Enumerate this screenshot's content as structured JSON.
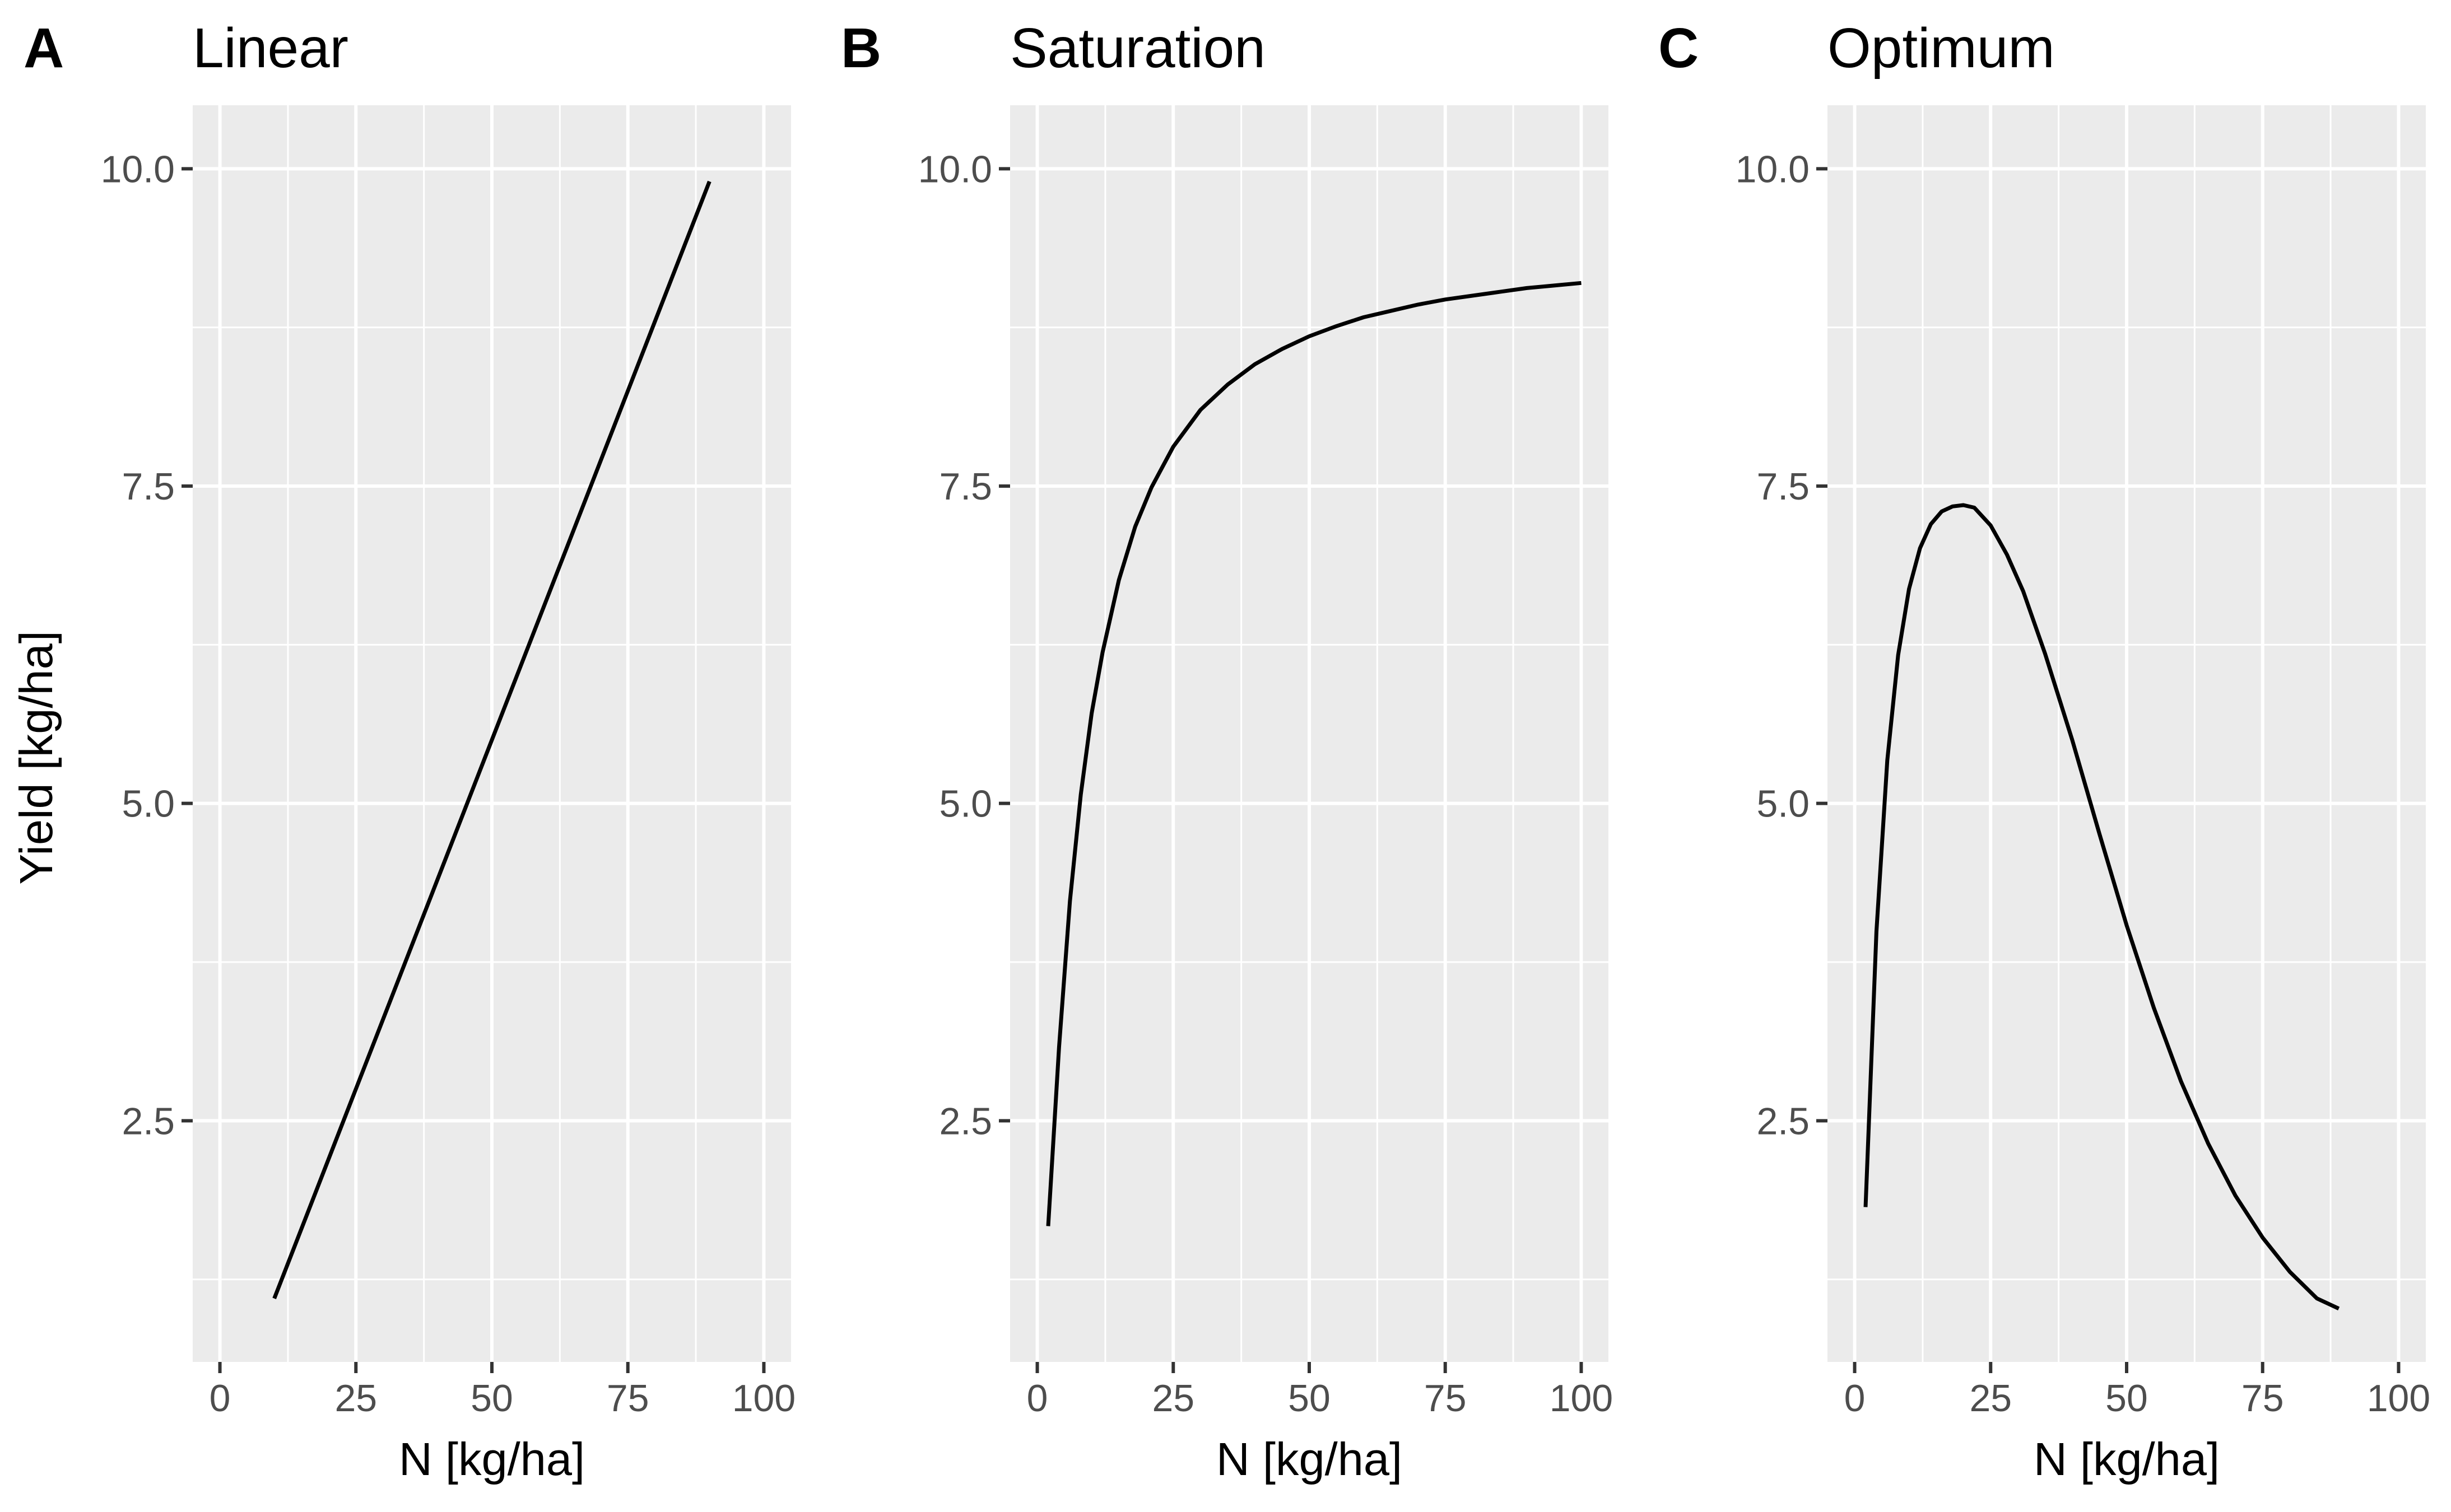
{
  "figure": {
    "ylabel": "Yield [kg/ha]"
  },
  "chart_data": [
    {
      "tag": "A",
      "title": "Linear",
      "type": "line",
      "xlabel": "N [kg/ha]",
      "ylabel": "Yield [kg/ha]",
      "xlim": [
        -5,
        105
      ],
      "ylim": [
        0.6,
        10.5
      ],
      "xticks": [
        0,
        25,
        50,
        75,
        100
      ],
      "xtick_labels": [
        "0",
        "25",
        "50",
        "75",
        "100"
      ],
      "yticks": [
        2.5,
        5.0,
        7.5,
        10.0
      ],
      "ytick_labels": [
        "2.5",
        "5.0",
        "7.5",
        "10.0"
      ],
      "grid": true,
      "series": [
        {
          "x": [
            10,
            20,
            30,
            40,
            50,
            60,
            70,
            80,
            90
          ],
          "y": [
            1.1,
            2.2,
            3.3,
            4.4,
            5.5,
            6.6,
            7.7,
            8.8,
            9.9
          ]
        }
      ]
    },
    {
      "tag": "B",
      "title": "Saturation",
      "type": "line",
      "xlabel": "N [kg/ha]",
      "xlim": [
        -5,
        105
      ],
      "ylim": [
        0.6,
        10.5
      ],
      "xticks": [
        0,
        25,
        50,
        75,
        100
      ],
      "xtick_labels": [
        "0",
        "25",
        "50",
        "75",
        "100"
      ],
      "yticks": [
        2.5,
        5.0,
        7.5,
        10.0
      ],
      "ytick_labels": [
        "2.5",
        "5.0",
        "7.5",
        "10.0"
      ],
      "grid": true,
      "series": [
        {
          "x": [
            2,
            4,
            6,
            8,
            10,
            12,
            15,
            18,
            21,
            25,
            30,
            35,
            40,
            45,
            50,
            55,
            60,
            65,
            70,
            75,
            80,
            85,
            90,
            95,
            100
          ],
          "y": [
            1.67,
            3.08,
            4.23,
            5.07,
            5.71,
            6.19,
            6.76,
            7.18,
            7.49,
            7.81,
            8.1,
            8.3,
            8.46,
            8.58,
            8.68,
            8.76,
            8.83,
            8.88,
            8.93,
            8.97,
            9.0,
            9.03,
            9.06,
            9.08,
            9.1
          ]
        }
      ]
    },
    {
      "tag": "C",
      "title": "Optimum",
      "type": "line",
      "xlabel": "N [kg/ha]",
      "xlim": [
        -5,
        105
      ],
      "ylim": [
        0.6,
        10.5
      ],
      "xticks": [
        0,
        25,
        50,
        75,
        100
      ],
      "xtick_labels": [
        "0",
        "25",
        "50",
        "75",
        "100"
      ],
      "yticks": [
        2.5,
        5.0,
        7.5,
        10.0
      ],
      "ytick_labels": [
        "2.5",
        "5.0",
        "7.5",
        "10.0"
      ],
      "grid": true,
      "series": [
        {
          "x": [
            2,
            4,
            6,
            8,
            10,
            12,
            14,
            16,
            18,
            20,
            22,
            25,
            28,
            31,
            35,
            40,
            45,
            50,
            55,
            60,
            65,
            70,
            75,
            80,
            85,
            89
          ],
          "y": [
            1.82,
            3.99,
            5.34,
            6.17,
            6.69,
            7.01,
            7.2,
            7.3,
            7.34,
            7.35,
            7.33,
            7.19,
            6.96,
            6.67,
            6.18,
            5.5,
            4.76,
            4.04,
            3.39,
            2.81,
            2.32,
            1.91,
            1.58,
            1.31,
            1.1,
            1.02
          ]
        }
      ]
    }
  ]
}
